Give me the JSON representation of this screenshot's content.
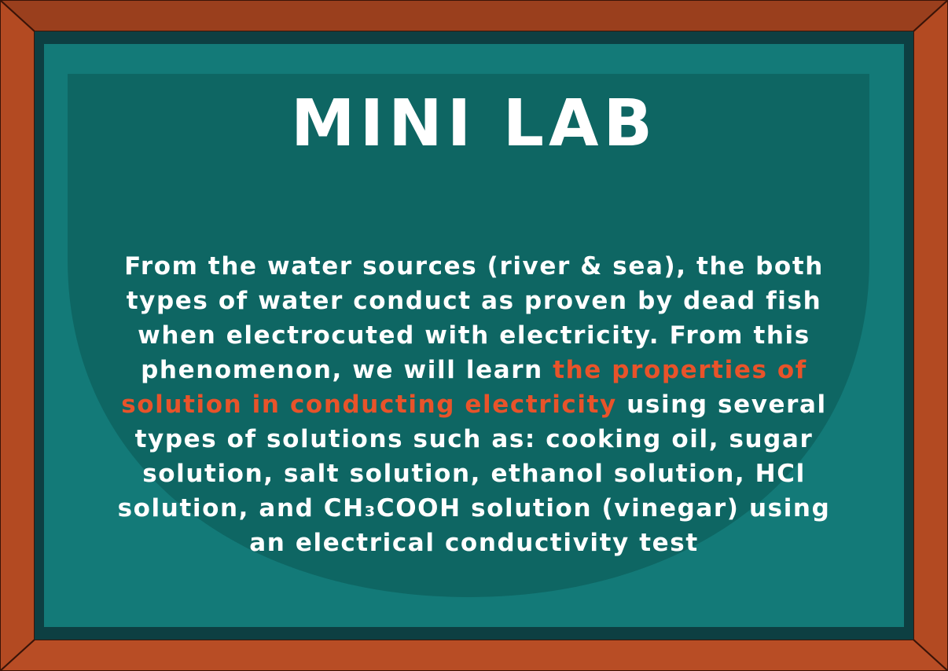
{
  "title": "MINI LAB",
  "paragraph": {
    "part1": "From the water sources (river & sea), the both types of water conduct as proven by dead fish when electrocuted with electricity. From this phenomenon, we will learn ",
    "highlight": "the properties of solution in conducting electricity",
    "part2": " using several types of solutions such as: cooking oil, sugar solution, salt solution, ethanol solution, HCl solution, and CH₃COOH solution (vinegar) using an electrical conductivity test"
  },
  "colors": {
    "frame_outer": "#b34a22",
    "frame_top": "#9a3f1d",
    "board_border": "#0d3f42",
    "board": "#137a78",
    "board_shade": "#0e6663",
    "text": "#ffffff",
    "highlight": "#e8532a"
  }
}
